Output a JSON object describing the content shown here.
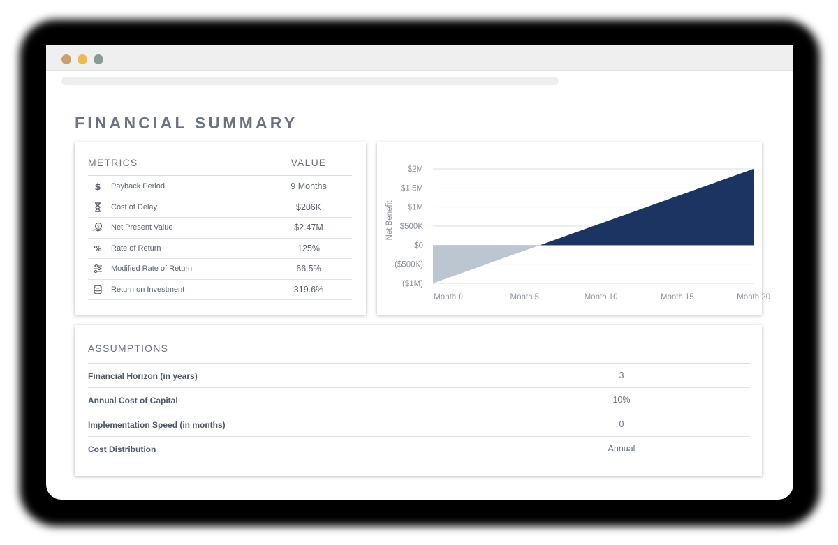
{
  "window": {
    "dots": [
      "#c9a06a",
      "#f2b84b",
      "#8a9c92"
    ]
  },
  "page": {
    "title": "FINANCIAL SUMMARY"
  },
  "metrics": {
    "col_metric": "METRICS",
    "col_value": "VALUE",
    "rows": [
      {
        "label": "Payback Period",
        "value": "9 Months",
        "icon": "dollar-icon"
      },
      {
        "label": "Cost of Delay",
        "value": "$206K",
        "icon": "hourglass-icon"
      },
      {
        "label": "Net Present Value",
        "value": "$2.47M",
        "icon": "money-hand-icon"
      },
      {
        "label": "Rate of Return",
        "value": "125%",
        "icon": "percent-icon"
      },
      {
        "label": "Modified Rate of Return",
        "value": "66.5%",
        "icon": "sliders-icon"
      },
      {
        "label": "Return on Investment",
        "value": "319.6%",
        "icon": "coins-icon"
      }
    ]
  },
  "chart_data": {
    "type": "area",
    "ylabel": "Net Benefit",
    "xlabel": "",
    "x_ticks": [
      "Month 0",
      "Month 5",
      "Month 10",
      "Month 15",
      "Month 20"
    ],
    "x_tick_values": [
      0,
      5,
      10,
      15,
      20
    ],
    "y_ticks": [
      "$2M",
      "$1.5M",
      "$1M",
      "$500K",
      "$0",
      "($500K)",
      "($1M)"
    ],
    "y_tick_values": [
      2000000,
      1500000,
      1000000,
      500000,
      0,
      -500000,
      -1000000
    ],
    "ylim": [
      -1000000,
      2000000
    ],
    "xlim": [
      0,
      21
    ],
    "x": [
      0,
      21
    ],
    "y": [
      -1000000,
      2000000
    ],
    "grid": true,
    "colors": {
      "negative": "#bcc6d1",
      "positive": "#1c3461",
      "grid": "#dddddd",
      "text": "#8a909a"
    }
  },
  "assumptions": {
    "title": "ASSUMPTIONS",
    "rows": [
      {
        "label": "Financial Horizon (in years)",
        "value": "3"
      },
      {
        "label": "Annual Cost of Capital",
        "value": "10%"
      },
      {
        "label": "Implementation Speed (in months)",
        "value": "0"
      },
      {
        "label": "Cost Distribution",
        "value": "Annual"
      }
    ]
  }
}
